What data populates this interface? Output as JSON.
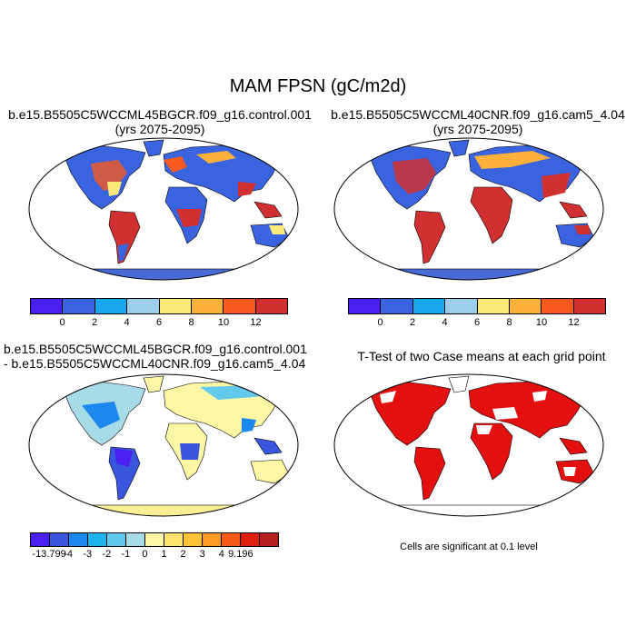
{
  "title": "MAM FPSN (gC/m2d)",
  "panels": {
    "top_left": {
      "title_line1": "b.e15.B5505C5WCCML45BGCR.f09_g16.control.001",
      "title_line2": "(yrs 2075-2095)"
    },
    "top_right": {
      "title_line1": "b.e15.B5505C5WCCML40CNR.f09_g16.cam5_4.04",
      "title_line2": "(yrs 2075-2095)"
    },
    "bottom_left": {
      "title_line1": "b.e15.B5505C5WCCML45BGCR.f09_g16.control.001",
      "title_line2": "- b.e15.B5505C5WCCML40CNR.f09_g16.cam5_4.04"
    },
    "bottom_right": {
      "title_line1": "T-Test of two Case means at each grid point",
      "note": "Cells are significant at 0.1 level"
    }
  },
  "colorbar_abs": {
    "colors": [
      "#4a20f0",
      "#3a63df",
      "#19a6f0",
      "#9ccdea",
      "#fbe97a",
      "#fbb13a",
      "#f85a1f",
      "#d03030"
    ],
    "tick_labels": [
      "0",
      "2",
      "4",
      "6",
      "8",
      "10",
      "12"
    ]
  },
  "colorbar_diff": {
    "colors": [
      "#4a20f0",
      "#3a55de",
      "#1c87ec",
      "#1eb4ee",
      "#63c9ec",
      "#a8dbe8",
      "#fdf6a4",
      "#fde46b",
      "#fdc43a",
      "#fb9a24",
      "#f25a16",
      "#e01f12",
      "#b82020"
    ],
    "tick_labels": [
      "-13.799",
      "-4",
      "-3",
      "-2",
      "-1",
      "0",
      "1",
      "2",
      "3",
      "4",
      "9.196"
    ]
  },
  "map_colors": {
    "ocean": "#ffffff",
    "outline": "#000000",
    "antarctica_abs": "#4a6ad8",
    "antarctica_diff": "#fbef96",
    "significant": "#e41010"
  }
}
